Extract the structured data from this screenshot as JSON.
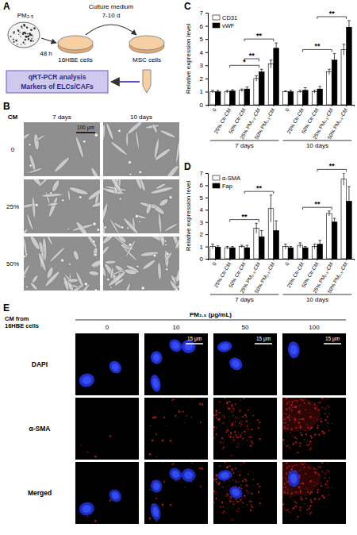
{
  "diagram": {
    "label": "A",
    "pm": "PM₂.₅",
    "time": "48 h",
    "medium": "Culture medium",
    "duration": "7-10 d",
    "cells1": "16HBE cells",
    "cells2": "MSC cells",
    "box": [
      "qRT-PCR analysis",
      "Markers of ELCs/CAFs"
    ]
  },
  "micrographs": {
    "label": "B",
    "header": "CM",
    "columns": [
      "7 days",
      "10 days"
    ],
    "rows": [
      "0",
      "25%",
      "50%"
    ],
    "scale_bar": "100 μm"
  },
  "chart_data": [
    {
      "type": "bar",
      "title": "C",
      "ylabel": "Relative expression level",
      "categories": [
        "0",
        "25% Ctr-CM",
        "50% Ctr-CM",
        "25% PM₂.₅-CM",
        "50% PM₂.₅-CM",
        "0",
        "25% Ctr-CM",
        "50% Ctr-CM",
        "25% PM₂.₅-CM",
        "50% PM₂.₅-CM"
      ],
      "groups": [
        "7 days",
        "10 days"
      ],
      "series": [
        {
          "name": "CD31",
          "color": "#ffffff",
          "values": [
            1.0,
            1.0,
            1.1,
            2.0,
            3.1,
            1.0,
            1.0,
            1.0,
            2.5,
            4.2
          ],
          "errors": [
            0.1,
            0.1,
            0.1,
            0.2,
            0.3,
            0.05,
            0.1,
            0.1,
            0.2,
            0.4
          ]
        },
        {
          "name": "vWF",
          "color": "#000000",
          "values": [
            1.0,
            1.05,
            1.2,
            2.5,
            4.3,
            1.0,
            1.1,
            1.2,
            3.4,
            5.9
          ],
          "errors": [
            0.1,
            0.1,
            0.15,
            0.2,
            0.4,
            0.1,
            0.2,
            0.2,
            0.5,
            0.5
          ]
        }
      ],
      "ylim": [
        0,
        7
      ],
      "yticks": [
        0,
        1,
        2,
        3,
        4,
        5,
        6,
        7
      ],
      "legend": "upper left",
      "annotations": [
        {
          "text": "*",
          "from": 1,
          "to": 3
        },
        {
          "text": "**",
          "from": 2,
          "to": 3
        },
        {
          "text": "**",
          "from": 2,
          "to": 4
        },
        {
          "text": "**",
          "from": 6,
          "to": 8
        },
        {
          "text": "**",
          "from": 7,
          "to": 9
        }
      ]
    },
    {
      "type": "bar",
      "title": "D",
      "ylabel": "Relative expression level",
      "categories": [
        "0",
        "25% Ctr-CM",
        "50% Ctr-CM",
        "25% PM₂.₅-CM",
        "50% PM₂.₅-CM",
        "0",
        "25% Ctr-CM",
        "50% Ctr-CM",
        "25% PM₂.₅-CM",
        "50% PM₂.₅-CM"
      ],
      "groups": [
        "7 days",
        "10 days"
      ],
      "series": [
        {
          "name": "α-SMA",
          "color": "#ffffff",
          "values": [
            1.0,
            0.9,
            1.0,
            2.5,
            4.1,
            1.0,
            1.1,
            1.0,
            3.7,
            6.5
          ],
          "errors": [
            0.2,
            0.1,
            0.1,
            0.4,
            1.1,
            0.2,
            0.2,
            0.2,
            0.2,
            0.5
          ]
        },
        {
          "name": "Fap",
          "color": "#000000",
          "values": [
            0.95,
            0.9,
            0.9,
            1.8,
            2.3,
            0.9,
            0.9,
            1.2,
            3.0,
            4.7
          ],
          "errors": [
            0.1,
            0.1,
            0.2,
            0.5,
            0.8,
            0.1,
            0.1,
            0.3,
            0.3,
            1.2
          ]
        }
      ],
      "ylim": [
        0,
        7
      ],
      "yticks": [
        0,
        1,
        2,
        3,
        4,
        5,
        6,
        7
      ],
      "legend": "upper left",
      "annotations": [
        {
          "text": "**",
          "from": 1,
          "to": 3
        },
        {
          "text": "**",
          "from": 2,
          "to": 4
        },
        {
          "text": "**",
          "from": 6,
          "to": 8
        },
        {
          "text": "**",
          "from": 7,
          "to": 9
        }
      ]
    }
  ],
  "fluorescence": {
    "label": "E",
    "row_header": [
      "CM from",
      "16HBE cells"
    ],
    "column_title": "PM₂.₅ (μg/mL)",
    "columns": [
      0,
      10,
      50,
      100
    ],
    "rows": [
      "DAPI",
      "α-SMA",
      "Merged"
    ],
    "scale_bar": "15 μm"
  }
}
